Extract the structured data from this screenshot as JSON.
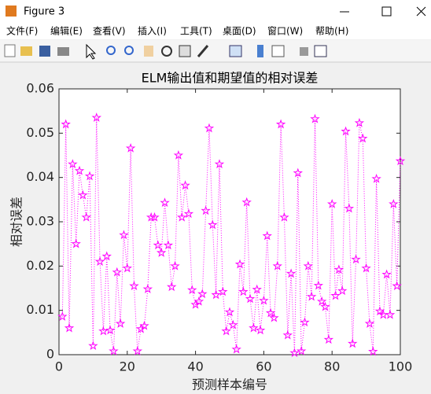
{
  "window": {
    "title": "Figure 3",
    "menu": [
      "文件(F)",
      "编辑(E)",
      "查看(V)",
      "插入(I)",
      "工具(T)",
      "桌面(D)",
      "窗口(W)",
      "帮助(H)"
    ]
  },
  "chart_data": {
    "type": "line",
    "title": "ELM输出值和期望值的相对误差",
    "x_label": "预测样本编号",
    "y_label": "相对误差",
    "x": [
      1,
      2,
      3,
      4,
      5,
      6,
      7,
      8,
      9,
      10,
      11,
      12,
      13,
      14,
      15,
      16,
      17,
      18,
      19,
      20,
      21,
      22,
      23,
      24,
      25,
      26,
      27,
      28,
      29,
      30,
      31,
      32,
      33,
      34,
      35,
      36,
      37,
      38,
      39,
      40,
      41,
      42,
      43,
      44,
      45,
      46,
      47,
      48,
      49,
      50,
      51,
      52,
      53,
      54,
      55,
      56,
      57,
      58,
      59,
      60,
      61,
      62,
      63,
      64,
      65,
      66,
      67,
      68,
      69,
      70,
      71,
      72,
      73,
      74,
      75,
      76,
      77,
      78,
      79,
      80,
      81,
      82,
      83,
      84,
      85,
      86,
      87,
      88,
      89,
      90,
      91,
      92,
      93,
      94,
      95,
      96,
      97,
      98,
      99,
      100
    ],
    "series": [
      {
        "name": "相对误差",
        "color": "#ff00ff",
        "values": [
          0.0086,
          0.052,
          0.006,
          0.043,
          0.025,
          0.0415,
          0.036,
          0.031,
          0.0403,
          0.002,
          0.0535,
          0.021,
          0.0053,
          0.0222,
          0.0055,
          0.0008,
          0.0186,
          0.007,
          0.027,
          0.0195,
          0.0466,
          0.0155,
          0.0008,
          0.0058,
          0.0065,
          0.0148,
          0.031,
          0.031,
          0.0247,
          0.023,
          0.0343,
          0.0247,
          0.0153,
          0.02,
          0.045,
          0.031,
          0.0382,
          0.0318,
          0.0146,
          0.0113,
          0.012,
          0.0137,
          0.0325,
          0.0511,
          0.0293,
          0.0135,
          0.043,
          0.0142,
          0.0053,
          0.0096,
          0.0067,
          0.0012,
          0.0204,
          0.0142,
          0.0344,
          0.0126,
          0.006,
          0.0147,
          0.0055,
          0.0122,
          0.0268,
          0.0094,
          0.0083,
          0.02,
          0.052,
          0.031,
          0.0044,
          0.0183,
          0.0004,
          0.041,
          0.0008,
          0.0073,
          0.02,
          0.0131,
          0.0532,
          0.0156,
          0.012,
          0.0108,
          0.0034,
          0.034,
          0.0133,
          0.0192,
          0.0144,
          0.0504,
          0.033,
          0.0025,
          0.0215,
          0.0523,
          0.0488,
          0.0195,
          0.007,
          0.0007,
          0.0397,
          0.0098,
          0.009,
          0.0181,
          0.009,
          0.034,
          0.0155,
          0.0437
        ]
      }
    ],
    "xlim": [
      0,
      100
    ],
    "xticks": [
      0,
      20,
      40,
      60,
      80,
      100
    ],
    "ylim": [
      0,
      0.06
    ],
    "yticks": [
      0,
      0.01,
      0.02,
      0.03,
      0.04,
      0.05,
      0.06
    ],
    "line_style": "dotted",
    "marker": "pentagram"
  }
}
